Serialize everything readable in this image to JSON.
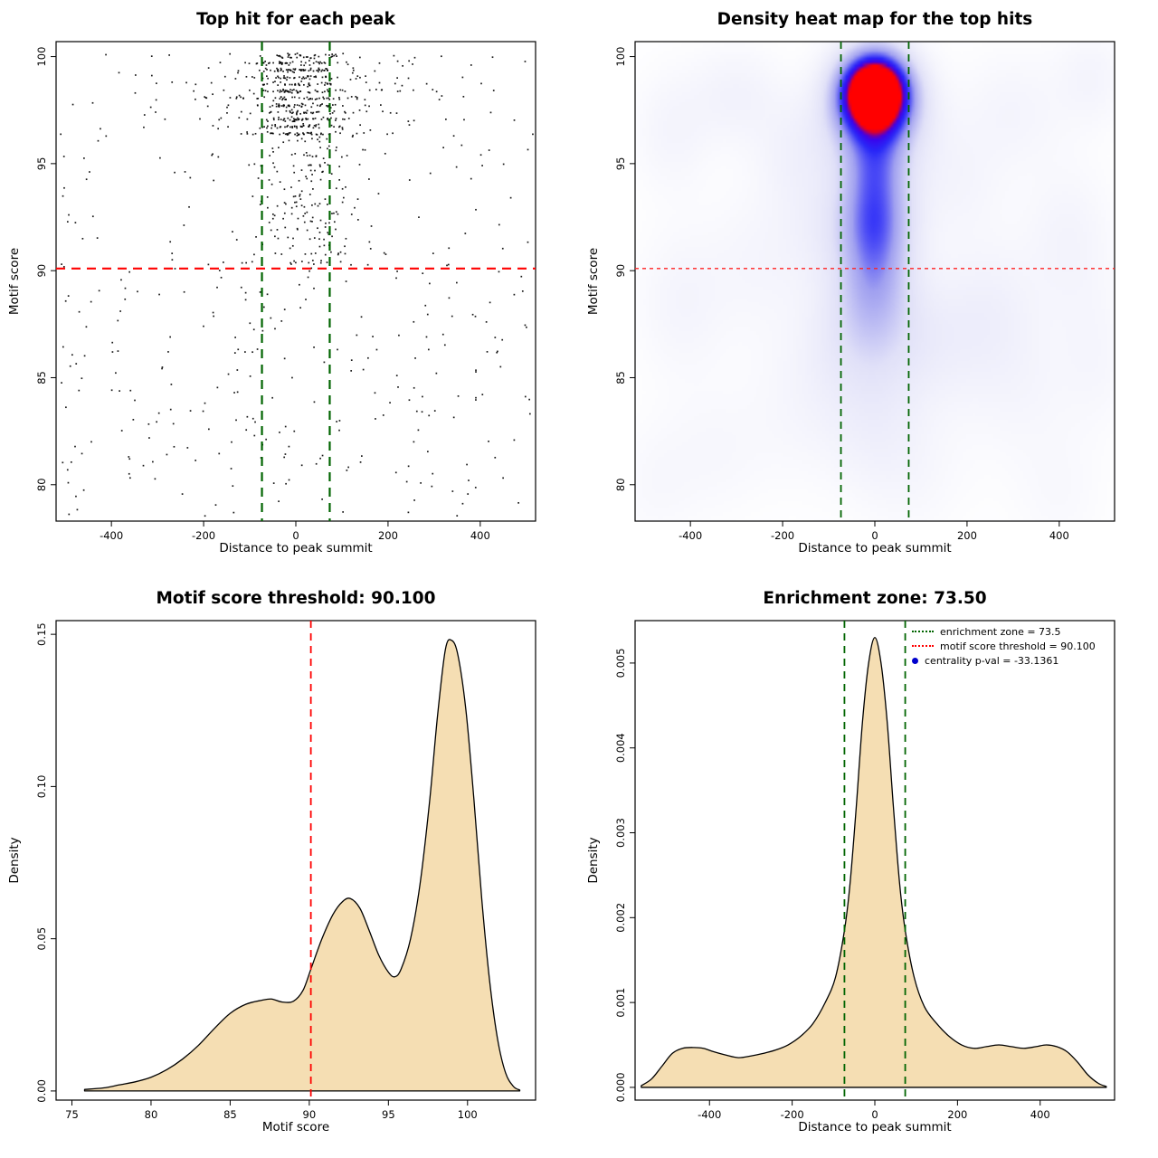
{
  "page": {
    "background": "#ffffff"
  },
  "colors": {
    "threshold_red": "#ff0000",
    "zone_green": "#006400",
    "density_fill": "#f5deb3",
    "curve_stroke": "#000000",
    "point_black": "#000000",
    "legend_blue": "#0000cd"
  },
  "chart_data": [
    {
      "id": "top-hit-scatter",
      "type": "scatter",
      "title": "Top hit for each peak",
      "xlabel": "Distance to peak summit",
      "ylabel": "Motif score",
      "xlim": [
        -520,
        520
      ],
      "ylim": [
        78.3,
        100.7
      ],
      "xticks": [
        {
          "v": -400,
          "label": "-400"
        },
        {
          "v": -200,
          "label": "-200"
        },
        {
          "v": 0,
          "label": "0"
        },
        {
          "v": 200,
          "label": "200"
        },
        {
          "v": 400,
          "label": "400"
        }
      ],
      "yticks": [
        {
          "v": 80,
          "label": "80"
        },
        {
          "v": 85,
          "label": "85"
        },
        {
          "v": 90,
          "label": "90"
        },
        {
          "v": 95,
          "label": "95"
        },
        {
          "v": 100,
          "label": "100"
        }
      ],
      "hline": {
        "value": 90.1,
        "color": "#ff0000",
        "dash": "10,7",
        "width": 2.2
      },
      "vlines": {
        "values": [
          -73.5,
          73.5
        ],
        "color": "#006400",
        "dash": "10,7",
        "width": 2.2
      },
      "point_color": "#000000",
      "point_generation": {
        "seed": 20240613,
        "groups": [
          {
            "name": "core-top-band",
            "count": 430,
            "x": {
              "dist": "normal",
              "mean": 12,
              "sd": 48
            },
            "y": {
              "min": 96.4,
              "max": 100.15,
              "step": 0.33,
              "jitter": 0.05
            }
          },
          {
            "name": "wide-top-band",
            "count": 150,
            "x": {
              "dist": "normal",
              "mean": 10,
              "sd": 190
            },
            "y": {
              "min": 96.4,
              "max": 100.15,
              "step": 0.33,
              "jitter": 0.05
            }
          },
          {
            "name": "core-mid-band",
            "count": 170,
            "x": {
              "dist": "normal",
              "mean": 18,
              "sd": 60
            },
            "y": {
              "min": 90.4,
              "max": 96.4,
              "step": 0.38,
              "jitter": 0.07
            }
          },
          {
            "name": "sparse-upper",
            "count": 120,
            "x": {
              "dist": "uniform",
              "min": -512,
              "max": 512
            },
            "y": {
              "min": 90.4,
              "max": 100.15,
              "step": 0.35,
              "jitter": 0.08
            }
          },
          {
            "name": "sparse-lower",
            "count": 250,
            "x": {
              "dist": "uniform",
              "min": -512,
              "max": 512
            },
            "y": {
              "min": 78.5,
              "max": 90.3,
              "step": 0,
              "jitter": 0,
              "pow": 1.45
            }
          }
        ]
      }
    },
    {
      "id": "top-hit-heatmap",
      "type": "heatmap",
      "title": "Density heat map for the top hits",
      "xlabel": "Distance to peak summit",
      "ylabel": "Motif score",
      "xlim": [
        -520,
        520
      ],
      "ylim": [
        78.3,
        100.7
      ],
      "xticks": [
        {
          "v": -400,
          "label": "-400"
        },
        {
          "v": -200,
          "label": "-200"
        },
        {
          "v": 0,
          "label": "0"
        },
        {
          "v": 200,
          "label": "200"
        },
        {
          "v": 400,
          "label": "400"
        }
      ],
      "yticks": [
        {
          "v": 80,
          "label": "80"
        },
        {
          "v": 85,
          "label": "85"
        },
        {
          "v": 90,
          "label": "90"
        },
        {
          "v": 95,
          "label": "95"
        },
        {
          "v": 100,
          "label": "100"
        }
      ],
      "hline": {
        "value": 90.1,
        "color": "#ff2222",
        "dash": "4,4",
        "width": 1.3
      },
      "vlines": {
        "values": [
          -73.5,
          73.5
        ],
        "color": "#006400",
        "dash": "8,6",
        "width": 1.8
      },
      "colormap": [
        {
          "t": 0.0,
          "c": [
            255,
            255,
            255
          ]
        },
        {
          "t": 0.3,
          "c": [
            225,
            225,
            248
          ]
        },
        {
          "t": 0.55,
          "c": [
            160,
            160,
            240
          ]
        },
        {
          "t": 0.75,
          "c": [
            40,
            40,
            248
          ]
        },
        {
          "t": 0.88,
          "c": [
            60,
            0,
            235
          ]
        },
        {
          "t": 1.0,
          "c": [
            255,
            0,
            0
          ]
        }
      ],
      "blobs": [
        {
          "x": 0,
          "y": 98.4,
          "sx": 55,
          "sy": 1.35,
          "a": 1.25
        },
        {
          "x": 0,
          "y": 96.9,
          "sx": 80,
          "sy": 1.9,
          "a": 0.4
        },
        {
          "x": 0,
          "y": 94.8,
          "sx": 48,
          "sy": 1.3,
          "a": 0.26
        },
        {
          "x": 0,
          "y": 92.4,
          "sx": 58,
          "sy": 1.6,
          "a": 0.55
        },
        {
          "x": 0,
          "y": 90.0,
          "sx": 55,
          "sy": 1.5,
          "a": 0.25
        },
        {
          "x": -10,
          "y": 88.3,
          "sx": 70,
          "sy": 1.7,
          "a": 0.22
        },
        {
          "x": -20,
          "y": 86.3,
          "sx": 95,
          "sy": 1.9,
          "a": 0.16
        },
        {
          "x": 0,
          "y": 83.0,
          "sx": 70,
          "sy": 2.2,
          "a": 0.1
        },
        {
          "x": -300,
          "y": 98.2,
          "sx": 70,
          "sy": 1.6,
          "a": 0.12
        },
        {
          "x": -440,
          "y": 96.5,
          "sx": 60,
          "sy": 2.0,
          "a": 0.1
        },
        {
          "x": -180,
          "y": 95.5,
          "sx": 60,
          "sy": 1.8,
          "a": 0.1
        },
        {
          "x": 300,
          "y": 97.5,
          "sx": 80,
          "sy": 2.0,
          "a": 0.1
        },
        {
          "x": 470,
          "y": 99.0,
          "sx": 55,
          "sy": 1.6,
          "a": 0.1
        },
        {
          "x": 180,
          "y": 94.0,
          "sx": 70,
          "sy": 2.0,
          "a": 0.09
        },
        {
          "x": 420,
          "y": 91.5,
          "sx": 70,
          "sy": 2.5,
          "a": 0.11
        },
        {
          "x": -420,
          "y": 88.5,
          "sx": 70,
          "sy": 2.5,
          "a": 0.1
        },
        {
          "x": -250,
          "y": 90.5,
          "sx": 80,
          "sy": 2.5,
          "a": 0.09
        },
        {
          "x": -120,
          "y": 92.0,
          "sx": 60,
          "sy": 2.0,
          "a": 0.1
        },
        {
          "x": 150,
          "y": 86.8,
          "sx": 90,
          "sy": 2.5,
          "a": 0.12
        },
        {
          "x": 320,
          "y": 84.5,
          "sx": 80,
          "sy": 2.5,
          "a": 0.08
        },
        {
          "x": -150,
          "y": 83.5,
          "sx": 90,
          "sy": 2.5,
          "a": 0.08
        },
        {
          "x": -350,
          "y": 81.5,
          "sx": 80,
          "sy": 2.2,
          "a": 0.07
        },
        {
          "x": 80,
          "y": 80.5,
          "sx": 90,
          "sy": 2.2,
          "a": 0.07
        },
        {
          "x": 260,
          "y": 88.5,
          "sx": 70,
          "sy": 2.2,
          "a": 0.09
        },
        {
          "x": 480,
          "y": 86.0,
          "sx": 60,
          "sy": 2.5,
          "a": 0.08
        },
        {
          "x": -480,
          "y": 80.0,
          "sx": 60,
          "sy": 2.0,
          "a": 0.06
        },
        {
          "x": 400,
          "y": 79.5,
          "sx": 70,
          "sy": 2.0,
          "a": 0.06
        }
      ]
    },
    {
      "id": "motif-score-density",
      "type": "density",
      "title": "Motif score threshold: 90.100",
      "xlabel": "Motif score",
      "ylabel": "Density",
      "xlim": [
        74,
        104.3
      ],
      "ylim": [
        -0.003,
        0.1545
      ],
      "xticks": [
        {
          "v": 75,
          "label": "75"
        },
        {
          "v": 80,
          "label": "80"
        },
        {
          "v": 85,
          "label": "85"
        },
        {
          "v": 90,
          "label": "90"
        },
        {
          "v": 95,
          "label": "95"
        },
        {
          "v": 100,
          "label": "100"
        }
      ],
      "yticks": [
        {
          "v": 0,
          "label": "0.00"
        },
        {
          "v": 0.05,
          "label": "0.05"
        },
        {
          "v": 0.1,
          "label": "0.10"
        },
        {
          "v": 0.15,
          "label": "0.15"
        }
      ],
      "fill": "#f5deb3",
      "stroke": "#000000",
      "vlines": {
        "values": [
          90.1
        ],
        "color": "#ff0000",
        "dash": "8,6",
        "width": 1.8
      },
      "curve": [
        [
          75.8,
          0.0005
        ],
        [
          77,
          0.001
        ],
        [
          78,
          0.002
        ],
        [
          79,
          0.003
        ],
        [
          80,
          0.0045
        ],
        [
          81,
          0.007
        ],
        [
          82,
          0.0105
        ],
        [
          83,
          0.015
        ],
        [
          84,
          0.0205
        ],
        [
          85,
          0.0255
        ],
        [
          86,
          0.0285
        ],
        [
          87,
          0.0298
        ],
        [
          87.6,
          0.0302
        ],
        [
          88.3,
          0.0292
        ],
        [
          89,
          0.0295
        ],
        [
          89.6,
          0.033
        ],
        [
          90.1,
          0.04
        ],
        [
          90.8,
          0.05
        ],
        [
          91.5,
          0.058
        ],
        [
          92.1,
          0.0622
        ],
        [
          92.6,
          0.0632
        ],
        [
          93.2,
          0.06
        ],
        [
          93.8,
          0.0525
        ],
        [
          94.4,
          0.0445
        ],
        [
          95,
          0.039
        ],
        [
          95.4,
          0.0375
        ],
        [
          95.8,
          0.04
        ],
        [
          96.4,
          0.05
        ],
        [
          97,
          0.068
        ],
        [
          97.6,
          0.095
        ],
        [
          98.1,
          0.123
        ],
        [
          98.6,
          0.145
        ],
        [
          99,
          0.148
        ],
        [
          99.4,
          0.143
        ],
        [
          99.9,
          0.125
        ],
        [
          100.4,
          0.096
        ],
        [
          100.9,
          0.063
        ],
        [
          101.4,
          0.036
        ],
        [
          101.9,
          0.017
        ],
        [
          102.4,
          0.006
        ],
        [
          102.9,
          0.0015
        ],
        [
          103.3,
          0.0003
        ]
      ]
    },
    {
      "id": "distance-density",
      "type": "density",
      "title": "Enrichment zone: 73.50",
      "xlabel": "Distance to peak summit",
      "ylabel": "Density",
      "xlim": [
        -580,
        580
      ],
      "ylim": [
        -0.00015,
        0.0055
      ],
      "xticks": [
        {
          "v": -400,
          "label": "-400"
        },
        {
          "v": -200,
          "label": "-200"
        },
        {
          "v": 0,
          "label": "0"
        },
        {
          "v": 200,
          "label": "200"
        },
        {
          "v": 400,
          "label": "400"
        }
      ],
      "yticks": [
        {
          "v": 0,
          "label": "0.000"
        },
        {
          "v": 0.001,
          "label": "0.001"
        },
        {
          "v": 0.002,
          "label": "0.002"
        },
        {
          "v": 0.003,
          "label": "0.003"
        },
        {
          "v": 0.004,
          "label": "0.004"
        },
        {
          "v": 0.005,
          "label": "0.005"
        }
      ],
      "fill": "#f5deb3",
      "stroke": "#000000",
      "vlines": {
        "values": [
          -73.5,
          73.5
        ],
        "color": "#006400",
        "dash": "8,6",
        "width": 1.8
      },
      "curve": [
        [
          -565,
          2e-05
        ],
        [
          -540,
          0.0001
        ],
        [
          -515,
          0.00025
        ],
        [
          -490,
          0.0004
        ],
        [
          -465,
          0.00046
        ],
        [
          -440,
          0.00047
        ],
        [
          -415,
          0.00046
        ],
        [
          -390,
          0.00042
        ],
        [
          -360,
          0.00038
        ],
        [
          -330,
          0.00035
        ],
        [
          -300,
          0.00037
        ],
        [
          -270,
          0.0004
        ],
        [
          -240,
          0.00044
        ],
        [
          -210,
          0.0005
        ],
        [
          -180,
          0.0006
        ],
        [
          -150,
          0.00075
        ],
        [
          -120,
          0.001
        ],
        [
          -95,
          0.0013
        ],
        [
          -73.5,
          0.00185
        ],
        [
          -60,
          0.0024
        ],
        [
          -45,
          0.0033
        ],
        [
          -30,
          0.0043
        ],
        [
          -15,
          0.005
        ],
        [
          0,
          0.0053
        ],
        [
          15,
          0.005
        ],
        [
          30,
          0.0043
        ],
        [
          45,
          0.0033
        ],
        [
          60,
          0.0024
        ],
        [
          73.5,
          0.00185
        ],
        [
          95,
          0.0013
        ],
        [
          120,
          0.00095
        ],
        [
          150,
          0.00075
        ],
        [
          180,
          0.0006
        ],
        [
          210,
          0.0005
        ],
        [
          240,
          0.00046
        ],
        [
          270,
          0.00048
        ],
        [
          300,
          0.0005
        ],
        [
          330,
          0.00048
        ],
        [
          360,
          0.00046
        ],
        [
          390,
          0.00048
        ],
        [
          415,
          0.0005
        ],
        [
          440,
          0.00048
        ],
        [
          465,
          0.00042
        ],
        [
          490,
          0.0003
        ],
        [
          515,
          0.00015
        ],
        [
          540,
          5e-05
        ],
        [
          560,
          1e-05
        ]
      ],
      "legend": {
        "items": [
          {
            "label": "enrichment zone = 73.5",
            "type": "line",
            "color": "#006400"
          },
          {
            "label": "motif score threshold = 90.100",
            "type": "line",
            "color": "#ff0000"
          },
          {
            "label": "centrality p-val = -33.1361",
            "type": "point",
            "color": "#0000cd"
          }
        ]
      }
    }
  ]
}
